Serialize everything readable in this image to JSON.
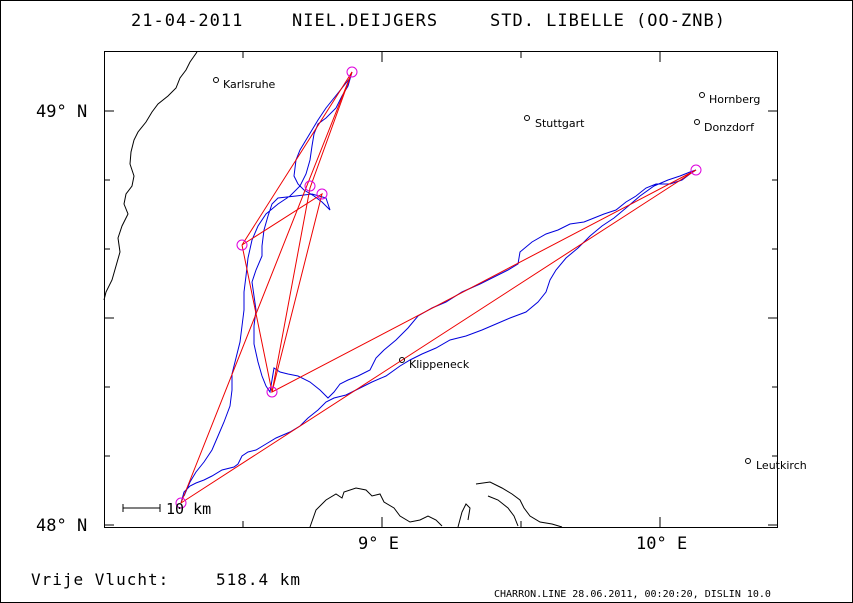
{
  "header": {
    "date": "21-04-2011",
    "pilot": "NIEL.DEIJGERS",
    "glider": "STD. LIBELLE (OO-ZNB)"
  },
  "axes": {
    "lat_labels": [
      "49° N",
      "48° N"
    ],
    "lon_labels": [
      "9° E",
      "10° E"
    ]
  },
  "towns": [
    {
      "name": "Karlsruhe"
    },
    {
      "name": "Stuttgart"
    },
    {
      "name": "Hornberg"
    },
    {
      "name": "Donzdorf"
    },
    {
      "name": "Klippeneck"
    },
    {
      "name": "Leutkirch"
    }
  ],
  "scale_bar": {
    "label": "10 km"
  },
  "distance": {
    "label": "Vrije Vlucht:",
    "value": "518.4 km"
  },
  "footer": "CHARRON.LINE 28.06.2011, 00:20:20, DISLIN 10.0",
  "colors": {
    "track": "#0000dd",
    "task": "#ee0000",
    "turnpoint": "#dd00dd",
    "frame": "#000000"
  }
}
